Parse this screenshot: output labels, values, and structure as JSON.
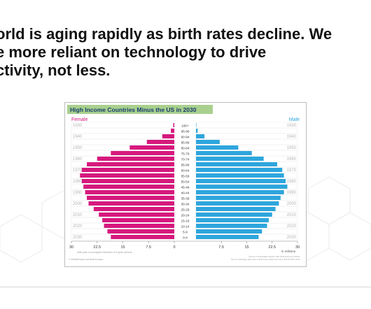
{
  "slide": {
    "headline_lines": [
      "orld is aging rapidly as birth rates decline. We",
      "e more reliant on technology to drive",
      "ctivity, not less."
    ]
  },
  "chart_data": {
    "type": "bar",
    "title": "High Income Countries Minus the US in 2030",
    "female_label": "Female",
    "male_label": "Male",
    "colors": {
      "female": "#d6197d",
      "male": "#2ea6dd",
      "title_bg": "#a9d08e",
      "title_text": "#173e6f"
    },
    "age_groups": [
      "100+",
      "95-99",
      "90-94",
      "85-89",
      "80-84",
      "75-79",
      "70-74",
      "65-69",
      "60-64",
      "55-59",
      "50-54",
      "45-49",
      "40-44",
      "35-39",
      "30-34",
      "25-29",
      "20-24",
      "15-19",
      "10-14",
      "5-9",
      "0-4"
    ],
    "series": [
      {
        "name": "Female",
        "values": [
          0.3,
          1.0,
          3.5,
          8.0,
          13.0,
          18.5,
          22.5,
          25.5,
          27.0,
          27.5,
          27.0,
          26.5,
          26.0,
          25.5,
          25.0,
          23.5,
          22.0,
          21.0,
          20.5,
          19.5,
          18.5
        ]
      },
      {
        "name": "Male",
        "values": [
          0.1,
          0.5,
          2.5,
          7.0,
          12.5,
          16.5,
          20.0,
          24.0,
          25.5,
          26.0,
          26.5,
          27.0,
          26.0,
          25.0,
          24.5,
          23.5,
          22.5,
          21.5,
          21.0,
          19.5,
          18.5
        ]
      }
    ],
    "xlim": [
      0,
      30
    ],
    "ticks": [
      "30",
      "22.5",
      "15",
      "7.5",
      "0",
      "7.5",
      "15",
      "22.5",
      "30"
    ],
    "birth_years": [
      "1930",
      "1940",
      "1950",
      "1960",
      "1970",
      "1980",
      "1990",
      "2000",
      "2010",
      "2020",
      "2030"
    ],
    "xlabel_right": "in millions",
    "xlabel_left": "birth year of youngest members of 5-year cohorts",
    "source_note": "Sources: UN Population Division; IMF World Economic Outlook",
    "source_note2": "Note: for methodology, high income is defined as per capita income above $30,000 USD in 2019",
    "copyright": "© 2019 Bill Gates and Melinda Gates"
  }
}
